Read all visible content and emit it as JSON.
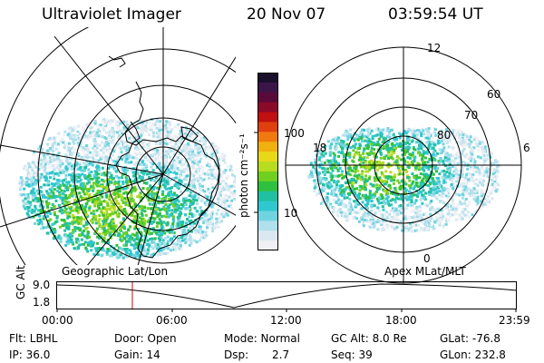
{
  "header": {
    "instrument": "Ultraviolet Imager",
    "date": "20 Nov 07",
    "time": "03:59:54 UT"
  },
  "colorbar": {
    "unit_label": "photon cm⁻²s⁻¹",
    "ticks": [
      "100",
      "10"
    ],
    "colors": [
      "#1a0f2a",
      "#3a1648",
      "#5a0a3a",
      "#8a0a2a",
      "#c01010",
      "#e04010",
      "#f07a10",
      "#f0b010",
      "#e8d818",
      "#b8dc20",
      "#70d020",
      "#30c040",
      "#20c0a0",
      "#30c8d0",
      "#70d4e0",
      "#b0e0ec",
      "#dce8f0",
      "#f0f0f4"
    ]
  },
  "left_panel": {
    "label": "Geographic Lat/Lon"
  },
  "right_panel": {
    "label": "Apex  MLat/MLT",
    "mlt_labels": [
      "12",
      "18",
      "6",
      "0"
    ],
    "lat_labels": [
      "60",
      "70",
      "80"
    ]
  },
  "altitude_plot": {
    "ylabel": "GC Alt",
    "y_ticks": [
      "9.0",
      "1.8"
    ],
    "x_ticks": [
      "00:00",
      "06:00",
      "12:00",
      "18:00",
      "23:59"
    ],
    "marker_time": "03:59",
    "marker_color": "#d00000"
  },
  "info": {
    "filter": "Flt: LBHL",
    "ip": "IP: 36.0",
    "door": "Door: Open",
    "gain": "Gain: 14",
    "mode": "Mode: Normal",
    "dsp_label": "Dsp:",
    "dsp_value": "2.7",
    "gc_alt": "GC Alt: 8.0 Re",
    "seq": "Seq: 39",
    "glat": "GLat: -76.8",
    "glon": "GLon: 232.8"
  }
}
